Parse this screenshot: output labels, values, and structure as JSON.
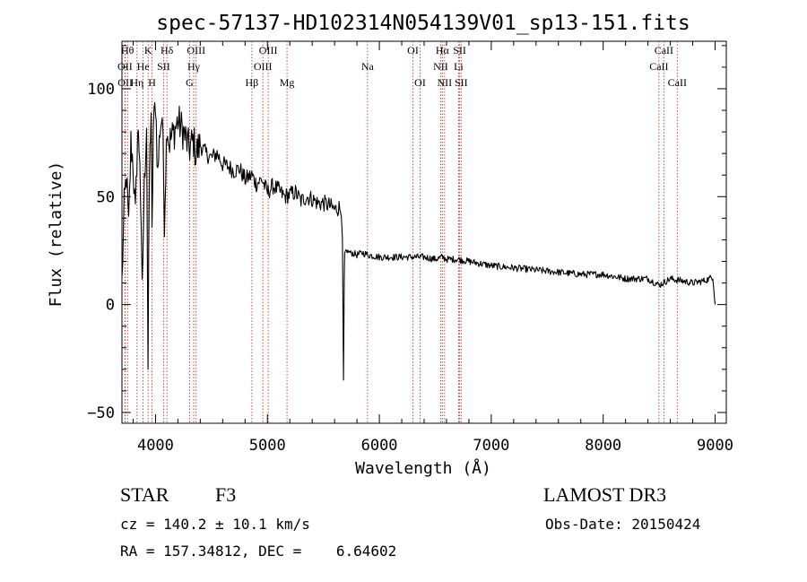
{
  "chart_data": {
    "type": "line",
    "title": "spec-57137-HD102314N054139V01_sp13-151.fits",
    "xlabel": "Wavelength (Å)",
    "ylabel": "Flux (relative)",
    "xlim": [
      3700,
      9100
    ],
    "ylim": [
      -55,
      122
    ],
    "xticks": [
      4000,
      5000,
      6000,
      7000,
      8000,
      9000
    ],
    "yticks": [
      -50,
      0,
      50,
      100
    ],
    "xtick_labels": [
      "4000",
      "5000",
      "6000",
      "7000",
      "8000",
      "9000"
    ],
    "ytick_labels": [
      "−50",
      "0",
      "50",
      "100"
    ],
    "grid": false,
    "series": [
      {
        "name": "flux",
        "x": [
          3700,
          3720,
          3740,
          3760,
          3780,
          3800,
          3820,
          3840,
          3860,
          3880,
          3900,
          3920,
          3933,
          3945,
          3960,
          3968,
          3980,
          4000,
          4020,
          4040,
          4060,
          4080,
          4102,
          4120,
          4150,
          4200,
          4250,
          4300,
          4340,
          4360,
          4400,
          4450,
          4500,
          4550,
          4600,
          4650,
          4700,
          4750,
          4800,
          4861,
          4900,
          4950,
          5000,
          5050,
          5100,
          5150,
          5200,
          5250,
          5300,
          5350,
          5400,
          5450,
          5500,
          5550,
          5600,
          5640,
          5660,
          5670,
          5680,
          5686,
          5690,
          5700,
          5750,
          5800,
          5850,
          5900,
          6000,
          6100,
          6200,
          6300,
          6400,
          6500,
          6563,
          6600,
          6700,
          6800,
          6900,
          7000,
          7200,
          7400,
          7600,
          7800,
          8000,
          8200,
          8400,
          8500,
          8600,
          8700,
          8800,
          8900,
          8950,
          8980,
          9000
        ],
        "y": [
          10,
          45,
          60,
          35,
          75,
          65,
          40,
          80,
          70,
          5,
          55,
          85,
          -30,
          60,
          90,
          30,
          80,
          95,
          60,
          82,
          88,
          40,
          85,
          75,
          78,
          85,
          80,
          72,
          76,
          70,
          74,
          70,
          68,
          70,
          65,
          64,
          62,
          63,
          58,
          60,
          56,
          58,
          52,
          55,
          53,
          50,
          51,
          52,
          48,
          50,
          49,
          47,
          47,
          46,
          44,
          45,
          42,
          30,
          -35,
          10,
          24,
          25,
          24,
          23,
          24,
          23,
          22,
          22,
          22,
          22,
          22,
          21,
          22,
          21,
          21,
          20,
          19,
          18,
          17,
          16,
          15,
          14,
          14,
          12,
          12,
          9,
          12,
          11,
          10,
          11,
          12,
          13,
          0
        ]
      }
    ],
    "lines": [
      {
        "label": "OII",
        "x": 3727,
        "row": 1
      },
      {
        "label": "OII",
        "x": 3729,
        "row": 2
      },
      {
        "label": "Hθ",
        "x": 3750,
        "row": 0
      },
      {
        "label": "Hη",
        "x": 3835,
        "row": 2
      },
      {
        "label": "He",
        "x": 3889,
        "row": 1
      },
      {
        "label": "K",
        "x": 3934,
        "row": 0
      },
      {
        "label": "H",
        "x": 3969,
        "row": 2
      },
      {
        "label": "SII",
        "x": 4072,
        "row": 1
      },
      {
        "label": "Hδ",
        "x": 4102,
        "row": 0
      },
      {
        "label": "G",
        "x": 4305,
        "row": 2
      },
      {
        "label": "Hγ",
        "x": 4341,
        "row": 1
      },
      {
        "label": "OIII",
        "x": 4363,
        "row": 0
      },
      {
        "label": "Hβ",
        "x": 4861,
        "row": 2
      },
      {
        "label": "OIII",
        "x": 4959,
        "row": 1
      },
      {
        "label": "OIII",
        "x": 5007,
        "row": 0
      },
      {
        "label": "Mg",
        "x": 5175,
        "row": 2
      },
      {
        "label": "Na",
        "x": 5894,
        "row": 1
      },
      {
        "label": "OI",
        "x": 6300,
        "row": 0
      },
      {
        "label": "OI",
        "x": 6364,
        "row": 2
      },
      {
        "label": "NII",
        "x": 6548,
        "row": 1
      },
      {
        "label": "Hα",
        "x": 6563,
        "row": 0
      },
      {
        "label": "NII",
        "x": 6583,
        "row": 2
      },
      {
        "label": "Li",
        "x": 6708,
        "row": 1
      },
      {
        "label": "SII",
        "x": 6717,
        "row": 0
      },
      {
        "label": "SII",
        "x": 6731,
        "row": 2
      },
      {
        "label": "CaII",
        "x": 8498,
        "row": 1
      },
      {
        "label": "CaII",
        "x": 8542,
        "row": 0
      },
      {
        "label": "CaII",
        "x": 8662,
        "row": 2
      }
    ]
  },
  "info": {
    "class": "STAR",
    "subclass": "F3",
    "survey": "LAMOST DR3",
    "cz": "cz = 140.2 ± 10.1 km/s",
    "obs_date": "Obs-Date: 20150424",
    "coords": "RA = 157.34812, DEC =    6.64602"
  },
  "colors": {
    "line_marker": "#c0392b",
    "spectrum": "#000000",
    "axis": "#000000"
  }
}
